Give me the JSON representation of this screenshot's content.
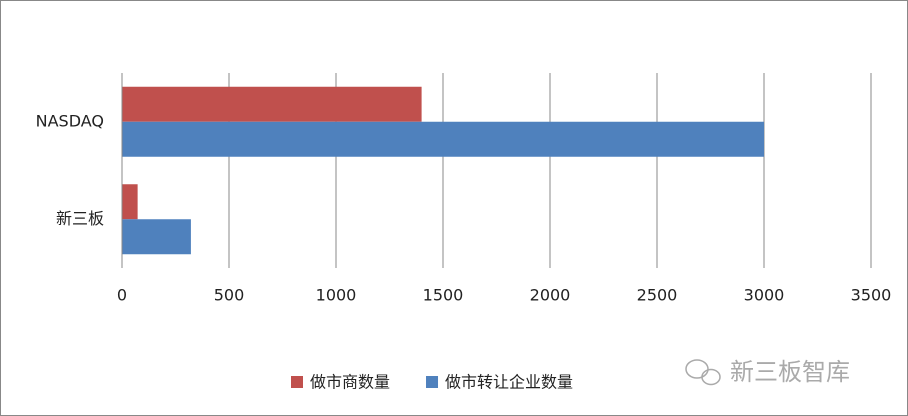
{
  "chart_data": {
    "type": "hbar",
    "categories": [
      "NASDAQ",
      "新三板"
    ],
    "series": [
      {
        "name": "做市商数量",
        "color": "#c0504d",
        "values": [
          1400,
          73
        ]
      },
      {
        "name": "做市转让企业数量",
        "color": "#4f81bd",
        "values": [
          3000,
          322
        ]
      }
    ],
    "xlim": [
      0,
      3500
    ],
    "xticks": [
      0,
      500,
      1000,
      1500,
      2000,
      2500,
      3000,
      3500
    ],
    "grid": true,
    "legend": "bottom",
    "watermark": "新三板智库"
  }
}
